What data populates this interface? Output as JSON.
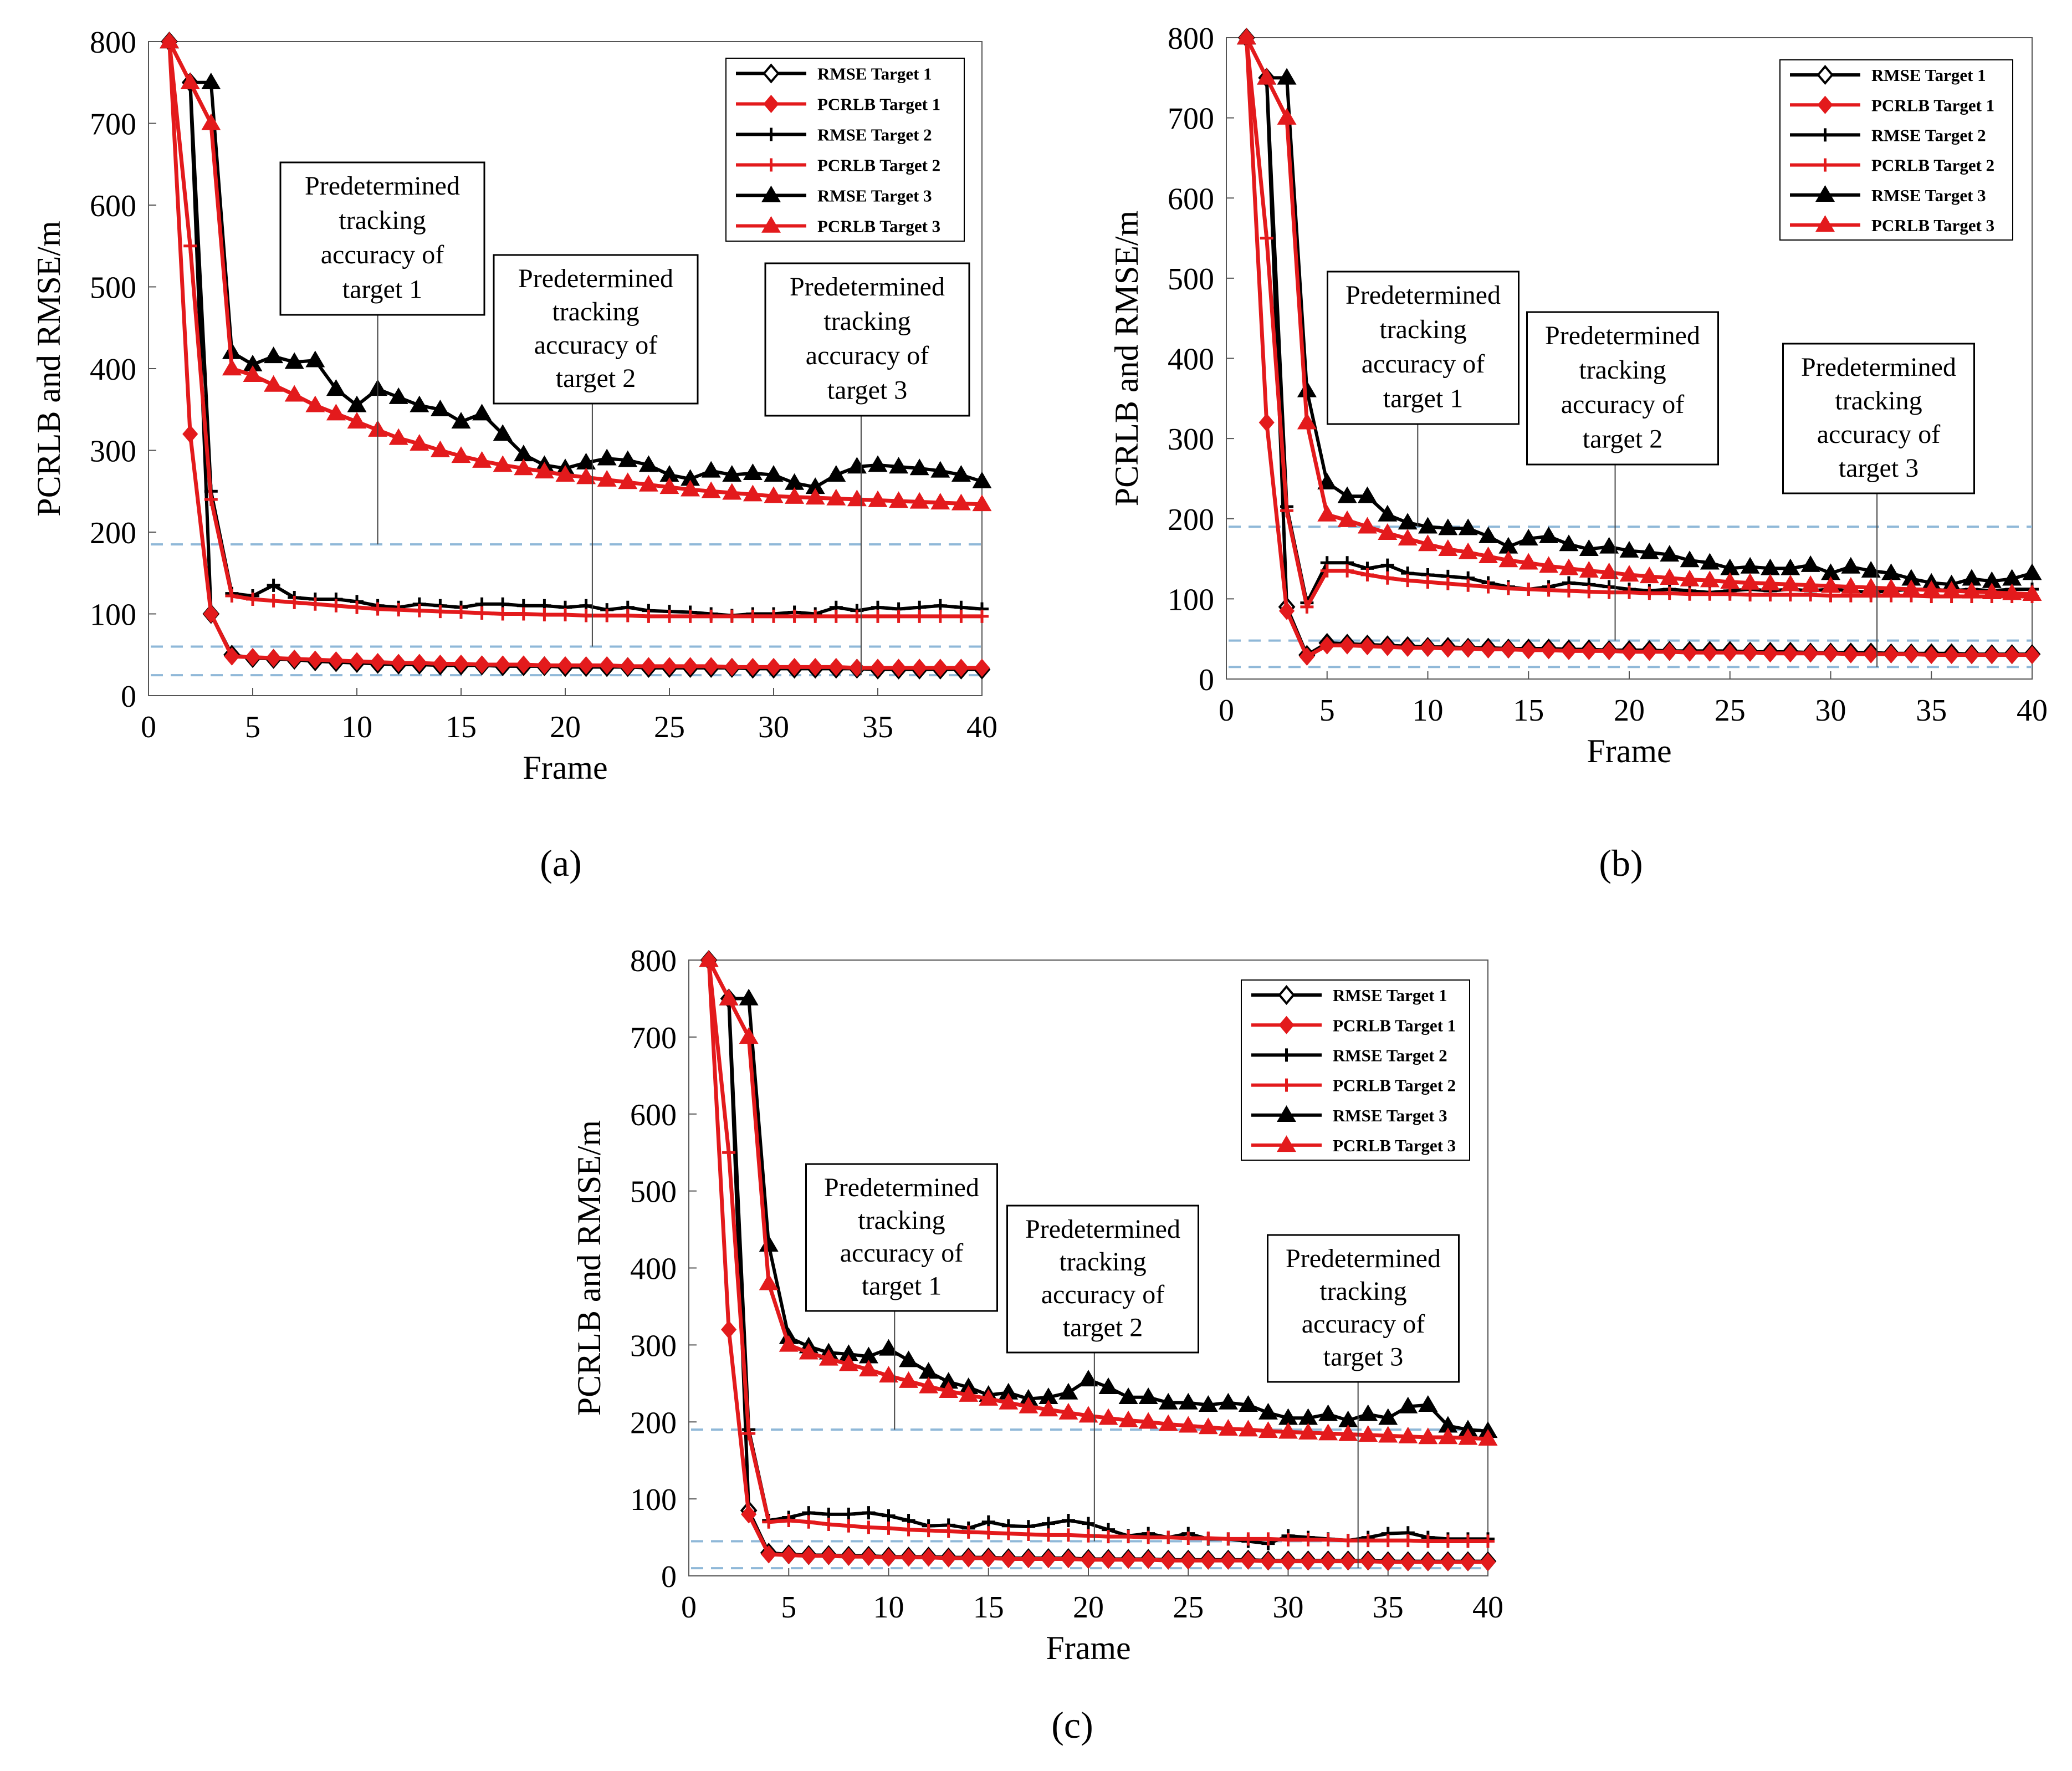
{
  "chart_data": [
    {
      "id": "a",
      "type": "line",
      "caption": "(a)",
      "xlabel": "Frame",
      "ylabel": "PCRLB and RMSE/m",
      "xlim": [
        0,
        40
      ],
      "ylim": [
        0,
        800
      ],
      "xticks": [
        0,
        5,
        10,
        15,
        20,
        25,
        30,
        35,
        40
      ],
      "yticks": [
        0,
        100,
        200,
        300,
        400,
        500,
        600,
        700,
        800
      ],
      "legend_position": "top-right",
      "x": [
        1,
        2,
        3,
        4,
        5,
        6,
        7,
        8,
        9,
        10,
        11,
        12,
        13,
        14,
        15,
        16,
        17,
        18,
        19,
        20,
        21,
        22,
        23,
        24,
        25,
        26,
        27,
        28,
        29,
        30,
        31,
        32,
        33,
        34,
        35,
        36,
        37,
        38,
        39,
        40
      ],
      "series": [
        {
          "name": "RMSE Target 1",
          "color": "#000000",
          "marker": "diamond-open",
          "values": [
            800,
            750,
            100,
            50,
            46,
            45,
            44,
            42,
            41,
            40,
            39,
            38,
            38,
            37,
            37,
            37,
            36,
            36,
            36,
            35,
            35,
            35,
            35,
            34,
            34,
            34,
            34,
            34,
            33,
            33,
            33,
            33,
            33,
            33,
            32,
            32,
            32,
            32,
            32,
            32
          ]
        },
        {
          "name": "PCRLB Target 1",
          "color": "#e31a1c",
          "marker": "diamond",
          "values": [
            800,
            320,
            100,
            48,
            47,
            46,
            45,
            44,
            43,
            42,
            41,
            40,
            40,
            39,
            39,
            38,
            38,
            38,
            37,
            37,
            37,
            37,
            36,
            36,
            36,
            36,
            36,
            35,
            35,
            35,
            35,
            35,
            35,
            34,
            34,
            34,
            34,
            34,
            34,
            34
          ]
        },
        {
          "name": "RMSE Target 2",
          "color": "#000000",
          "marker": "plus",
          "values": [
            800,
            750,
            250,
            125,
            122,
            135,
            120,
            118,
            118,
            115,
            110,
            108,
            112,
            110,
            108,
            112,
            112,
            110,
            110,
            108,
            110,
            105,
            108,
            104,
            103,
            102,
            100,
            98,
            100,
            100,
            102,
            100,
            108,
            104,
            108,
            106,
            108,
            110,
            108,
            106
          ]
        },
        {
          "name": "PCRLB Target 2",
          "color": "#e31a1c",
          "marker": "plus",
          "values": [
            800,
            550,
            240,
            122,
            118,
            116,
            114,
            112,
            110,
            108,
            106,
            105,
            104,
            103,
            102,
            101,
            100,
            100,
            99,
            99,
            98,
            98,
            98,
            97,
            97,
            97,
            97,
            97,
            97,
            97,
            97,
            97,
            97,
            97,
            97,
            97,
            97,
            97,
            97,
            97
          ]
        },
        {
          "name": "RMSE Target 3",
          "color": "#000000",
          "marker": "triangle",
          "values": [
            800,
            750,
            750,
            420,
            405,
            415,
            408,
            410,
            375,
            355,
            375,
            365,
            355,
            350,
            335,
            345,
            320,
            295,
            282,
            278,
            285,
            290,
            288,
            282,
            270,
            265,
            275,
            270,
            272,
            270,
            260,
            255,
            270,
            280,
            282,
            280,
            278,
            275,
            270,
            262
          ]
        },
        {
          "name": "PCRLB Target 3",
          "color": "#e31a1c",
          "marker": "triangle",
          "values": [
            800,
            750,
            700,
            400,
            392,
            380,
            368,
            355,
            345,
            335,
            325,
            315,
            308,
            300,
            293,
            287,
            282,
            278,
            274,
            270,
            267,
            264,
            261,
            258,
            255,
            252,
            250,
            248,
            246,
            244,
            243,
            242,
            241,
            240,
            239,
            238,
            237,
            236,
            235,
            234
          ]
        }
      ],
      "thresholds": [
        185,
        60,
        25
      ],
      "annotations": [
        {
          "lines": [
            "Predetermined",
            "tracking",
            "accuracy of",
            "target 1"
          ],
          "x": 11
        },
        {
          "lines": [
            "Predetermined",
            "tracking",
            "accuracy of",
            "target 2"
          ],
          "x": 21.3
        },
        {
          "lines": [
            "Predetermined",
            "tracking",
            "accuracy of",
            "target 3"
          ],
          "x": 34.2
        }
      ]
    },
    {
      "id": "b",
      "type": "line",
      "caption": "(b)",
      "xlabel": "Frame",
      "ylabel": "PCRLB and RMSE/m",
      "xlim": [
        0,
        40
      ],
      "ylim": [
        0,
        800
      ],
      "xticks": [
        0,
        5,
        10,
        15,
        20,
        25,
        30,
        35,
        40
      ],
      "yticks": [
        0,
        100,
        200,
        300,
        400,
        500,
        600,
        700,
        800
      ],
      "legend_position": "top-right",
      "x": [
        1,
        2,
        3,
        4,
        5,
        6,
        7,
        8,
        9,
        10,
        11,
        12,
        13,
        14,
        15,
        16,
        17,
        18,
        19,
        20,
        21,
        22,
        23,
        24,
        25,
        26,
        27,
        28,
        29,
        30,
        31,
        32,
        33,
        34,
        35,
        36,
        37,
        38,
        39,
        40
      ],
      "series": [
        {
          "name": "RMSE Target 1",
          "color": "#000000",
          "marker": "diamond-open",
          "values": [
            800,
            750,
            90,
            30,
            45,
            44,
            43,
            42,
            41,
            40,
            40,
            39,
            39,
            38,
            38,
            38,
            37,
            37,
            36,
            36,
            36,
            35,
            35,
            35,
            35,
            34,
            34,
            34,
            33,
            33,
            33,
            33,
            32,
            32,
            32,
            32,
            31,
            31,
            31,
            31
          ]
        },
        {
          "name": "PCRLB Target 1",
          "color": "#e31a1c",
          "marker": "diamond",
          "values": [
            800,
            320,
            85,
            28,
            42,
            42,
            41,
            40,
            39,
            39,
            38,
            38,
            37,
            37,
            36,
            36,
            35,
            35,
            35,
            34,
            34,
            34,
            33,
            33,
            33,
            33,
            32,
            32,
            32,
            32,
            31,
            31,
            31,
            31,
            30,
            30,
            30,
            30,
            30,
            30
          ]
        },
        {
          "name": "RMSE Target 2",
          "color": "#000000",
          "marker": "plus",
          "values": [
            800,
            750,
            215,
            95,
            145,
            145,
            138,
            142,
            132,
            130,
            128,
            126,
            120,
            115,
            112,
            115,
            120,
            118,
            115,
            112,
            110,
            112,
            110,
            108,
            110,
            112,
            110,
            112,
            110,
            112,
            110,
            108,
            110,
            112,
            112,
            110,
            112,
            110,
            112,
            112
          ]
        },
        {
          "name": "PCRLB Target 2",
          "color": "#e31a1c",
          "marker": "plus",
          "values": [
            800,
            550,
            210,
            90,
            135,
            135,
            130,
            126,
            123,
            121,
            119,
            117,
            115,
            113,
            112,
            111,
            110,
            109,
            108,
            108,
            107,
            107,
            106,
            106,
            106,
            105,
            105,
            105,
            105,
            104,
            104,
            104,
            104,
            104,
            103,
            103,
            103,
            103,
            103,
            103
          ]
        },
        {
          "name": "RMSE Target 3",
          "color": "#000000",
          "marker": "triangle",
          "values": [
            800,
            750,
            750,
            360,
            245,
            228,
            228,
            205,
            195,
            190,
            188,
            188,
            178,
            165,
            175,
            178,
            168,
            162,
            165,
            160,
            158,
            155,
            148,
            145,
            138,
            140,
            138,
            138,
            142,
            132,
            140,
            135,
            132,
            125,
            120,
            118,
            125,
            122,
            125,
            132
          ]
        },
        {
          "name": "PCRLB Target 3",
          "color": "#e31a1c",
          "marker": "triangle",
          "values": [
            800,
            750,
            700,
            320,
            205,
            198,
            190,
            182,
            175,
            168,
            162,
            158,
            153,
            148,
            145,
            141,
            138,
            135,
            133,
            130,
            128,
            126,
            124,
            123,
            121,
            120,
            119,
            118,
            117,
            116,
            115,
            114,
            113,
            112,
            111,
            110,
            109,
            108,
            107,
            106
          ]
        }
      ],
      "thresholds": [
        190,
        48,
        15
      ],
      "annotations": [
        {
          "lines": [
            "Predetermined",
            "tracking",
            "accuracy of",
            "target 1"
          ],
          "x": 9.5
        },
        {
          "lines": [
            "Predetermined",
            "tracking",
            "accuracy of",
            "target 2"
          ],
          "x": 19.3
        },
        {
          "lines": [
            "Predetermined",
            "tracking",
            "accuracy of",
            "target 3"
          ],
          "x": 32.3
        }
      ]
    },
    {
      "id": "c",
      "type": "line",
      "caption": "(c)",
      "xlabel": "Frame",
      "ylabel": "PCRLB and RMSE/m",
      "xlim": [
        0,
        40
      ],
      "ylim": [
        0,
        800
      ],
      "xticks": [
        0,
        5,
        10,
        15,
        20,
        25,
        30,
        35,
        40
      ],
      "yticks": [
        0,
        100,
        200,
        300,
        400,
        500,
        600,
        700,
        800
      ],
      "legend_position": "top-right",
      "x": [
        1,
        2,
        3,
        4,
        5,
        6,
        7,
        8,
        9,
        10,
        11,
        12,
        13,
        14,
        15,
        16,
        17,
        18,
        19,
        20,
        21,
        22,
        23,
        24,
        25,
        26,
        27,
        28,
        29,
        30,
        31,
        32,
        33,
        34,
        35,
        36,
        37,
        38,
        39,
        40
      ],
      "series": [
        {
          "name": "RMSE Target 1",
          "color": "#000000",
          "marker": "diamond-open",
          "values": [
            800,
            750,
            85,
            30,
            28,
            27,
            27,
            26,
            26,
            25,
            25,
            25,
            24,
            24,
            24,
            23,
            23,
            23,
            23,
            22,
            22,
            22,
            22,
            21,
            21,
            21,
            21,
            21,
            20,
            20,
            20,
            20,
            20,
            20,
            19,
            19,
            19,
            19,
            19,
            19
          ]
        },
        {
          "name": "PCRLB Target 1",
          "color": "#e31a1c",
          "marker": "diamond",
          "values": [
            800,
            320,
            80,
            28,
            27,
            26,
            26,
            25,
            25,
            24,
            24,
            24,
            23,
            23,
            23,
            22,
            22,
            22,
            22,
            21,
            21,
            21,
            21,
            20,
            20,
            20,
            20,
            20,
            19,
            19,
            19,
            19,
            19,
            19,
            18,
            18,
            18,
            18,
            18,
            18
          ]
        },
        {
          "name": "RMSE Target 2",
          "color": "#000000",
          "marker": "plus",
          "values": [
            800,
            750,
            190,
            72,
            76,
            82,
            80,
            80,
            82,
            78,
            72,
            65,
            66,
            62,
            70,
            65,
            64,
            68,
            72,
            68,
            60,
            52,
            55,
            50,
            55,
            48,
            48,
            45,
            42,
            52,
            50,
            48,
            46,
            50,
            55,
            56,
            50,
            48,
            48,
            48
          ]
        },
        {
          "name": "PCRLB Target 2",
          "color": "#e31a1c",
          "marker": "plus",
          "values": [
            800,
            550,
            185,
            70,
            72,
            70,
            67,
            65,
            63,
            62,
            60,
            59,
            58,
            57,
            56,
            55,
            54,
            53,
            53,
            52,
            51,
            51,
            50,
            50,
            49,
            49,
            48,
            48,
            48,
            47,
            47,
            47,
            46,
            46,
            46,
            46,
            45,
            45,
            45,
            45
          ]
        },
        {
          "name": "RMSE Target 3",
          "color": "#000000",
          "marker": "triangle",
          "values": [
            800,
            750,
            750,
            430,
            310,
            298,
            290,
            288,
            285,
            295,
            280,
            265,
            252,
            245,
            235,
            238,
            230,
            232,
            238,
            255,
            245,
            232,
            232,
            225,
            225,
            222,
            225,
            222,
            212,
            205,
            205,
            210,
            202,
            210,
            205,
            220,
            222,
            195,
            190,
            188
          ]
        },
        {
          "name": "PCRLB Target 3",
          "color": "#e31a1c",
          "marker": "triangle",
          "values": [
            800,
            750,
            700,
            380,
            300,
            290,
            282,
            275,
            268,
            260,
            253,
            246,
            240,
            235,
            230,
            225,
            220,
            216,
            212,
            208,
            205,
            202,
            200,
            197,
            195,
            193,
            191,
            190,
            188,
            187,
            186,
            185,
            184,
            183,
            182,
            181,
            180,
            180,
            179,
            178
          ]
        }
      ],
      "thresholds": [
        190,
        45,
        10
      ],
      "annotations": [
        {
          "lines": [
            "Predetermined",
            "tracking",
            "accuracy of",
            "target 1"
          ],
          "x": 10.3
        },
        {
          "lines": [
            "Predetermined",
            "tracking",
            "accuracy of",
            "target 2"
          ],
          "x": 20.3
        },
        {
          "lines": [
            "Predetermined",
            "tracking",
            "accuracy of",
            "target 3"
          ],
          "x": 33.5
        }
      ]
    }
  ]
}
